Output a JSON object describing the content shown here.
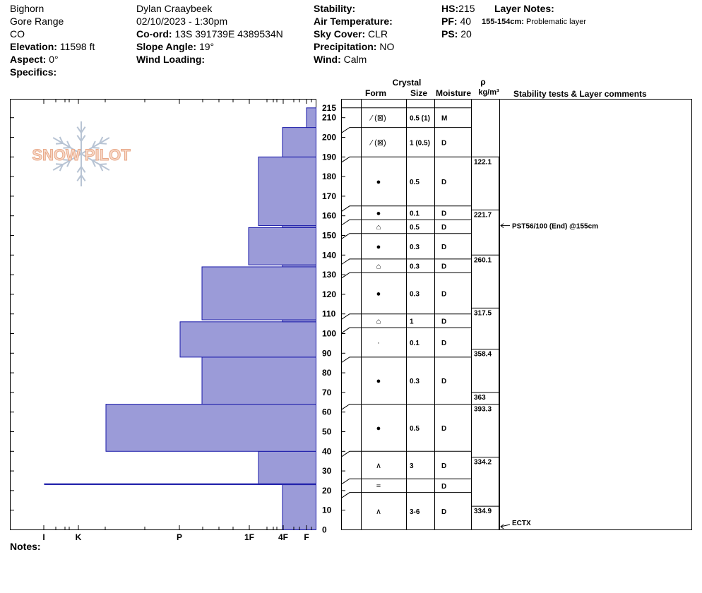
{
  "header": {
    "location": "Bighorn",
    "range": "Gore Range",
    "state": "CO",
    "elevation_label": "Elevation:",
    "elevation": "11598 ft",
    "aspect_label": "Aspect:",
    "aspect": "0°",
    "specifics_label": "Specifics:",
    "observer": "Dylan Craaybeek",
    "datetime": "02/10/2023 - 1:30pm",
    "coord_label": "Co-ord:",
    "coord": "13S 391739E 4389534N",
    "slope_label": "Slope Angle:",
    "slope": "19°",
    "wind_loading_label": "Wind Loading:",
    "stability_label": "Stability:",
    "air_temp_label": "Air Temperature:",
    "sky_label": "Sky Cover:",
    "sky": "CLR",
    "precip_label": "Precipitation:",
    "precip": "NO",
    "wind_label": "Wind:",
    "wind": "Calm",
    "hs_label": "HS:",
    "hs": "215",
    "pf_label": "PF:",
    "pf": "40",
    "ps_label": "PS:",
    "ps": "20",
    "layer_notes_label": "Layer Notes:",
    "layer_note_range": "155-154cm:",
    "layer_note_text": "Problematic layer",
    "notes_label": "Notes:"
  },
  "logo": {
    "text": "SNOW PILOT"
  },
  "chart_data": {
    "type": "snow_profile",
    "y_unit": "cm",
    "ylim": [
      0,
      220
    ],
    "y_ticks": [
      0,
      10,
      20,
      30,
      40,
      50,
      60,
      70,
      80,
      90,
      100,
      110,
      120,
      130,
      140,
      150,
      160,
      170,
      180,
      190,
      200,
      210,
      215
    ],
    "hardness_scale": [
      "I",
      "K",
      "P",
      "1F",
      "4F",
      "F"
    ],
    "hardness_profile": [
      {
        "from": 0,
        "to": 23,
        "hardness": "4F"
      },
      {
        "from": 23,
        "to": 23.5,
        "hardness": "I"
      },
      {
        "from": 23.5,
        "to": 40,
        "hardness": "1F+"
      },
      {
        "from": 40,
        "to": 64,
        "hardness": "K+"
      },
      {
        "from": 64,
        "to": 88,
        "hardness": "P+"
      },
      {
        "from": 88,
        "to": 106,
        "hardness": "P"
      },
      {
        "from": 106,
        "to": 107,
        "hardness": "4F"
      },
      {
        "from": 107,
        "to": 134,
        "hardness": "P+"
      },
      {
        "from": 134,
        "to": 135,
        "hardness": "4F"
      },
      {
        "from": 135,
        "to": 154,
        "hardness": "1F"
      },
      {
        "from": 154,
        "to": 155,
        "hardness": "4F"
      },
      {
        "from": 155,
        "to": 190,
        "hardness": "1F+"
      },
      {
        "from": 190,
        "to": 205,
        "hardness": "4F"
      },
      {
        "from": 205,
        "to": 215,
        "hardness": "F"
      }
    ],
    "columns": {
      "crystal": "Crystal",
      "form": "Form",
      "size": "Size",
      "moisture": "Moisture",
      "rho": "ρ",
      "rho_unit": "kg/m³",
      "tests": "Stability tests & Layer comments"
    },
    "layers": [
      {
        "top": 215,
        "bottom": 205,
        "form": "⁄ (⊠)",
        "size": "0.5 (1)",
        "moisture": "M"
      },
      {
        "top": 205,
        "bottom": 190,
        "form": "⁄ (⊠)",
        "size": "1 (0.5)",
        "moisture": "D"
      },
      {
        "top": 190,
        "bottom": 165,
        "form": "●",
        "size": "0.5",
        "moisture": "D"
      },
      {
        "top": 165,
        "bottom": 158,
        "form": "●",
        "size": "0.1",
        "moisture": "D"
      },
      {
        "top": 158,
        "bottom": 151,
        "form": "⌂",
        "size": "0.5",
        "moisture": "D"
      },
      {
        "top": 151,
        "bottom": 138,
        "form": "●",
        "size": "0.3",
        "moisture": "D"
      },
      {
        "top": 138,
        "bottom": 131,
        "form": "⌂",
        "size": "0.3",
        "moisture": "D"
      },
      {
        "top": 131,
        "bottom": 110,
        "form": "●",
        "size": "0.3",
        "moisture": "D"
      },
      {
        "top": 110,
        "bottom": 103,
        "form": "⌂",
        "size": "1",
        "moisture": "D"
      },
      {
        "top": 103,
        "bottom": 88,
        "form": "·",
        "size": "0.1",
        "moisture": "D"
      },
      {
        "top": 88,
        "bottom": 64,
        "form": "●",
        "size": "0.3",
        "moisture": "D"
      },
      {
        "top": 64,
        "bottom": 40,
        "form": "●",
        "size": "0.5",
        "moisture": "D"
      },
      {
        "top": 40,
        "bottom": 26,
        "form": "∧",
        "size": "3",
        "moisture": "D"
      },
      {
        "top": 26,
        "bottom": 19,
        "form": "=",
        "size": "",
        "moisture": "D"
      },
      {
        "top": 19,
        "bottom": 0,
        "form": "∧",
        "size": "3-6",
        "moisture": "D"
      }
    ],
    "density": [
      {
        "top": 190,
        "bottom": 163,
        "value": "122.1"
      },
      {
        "top": 163,
        "bottom": 140,
        "value": "221.7"
      },
      {
        "top": 140,
        "bottom": 113,
        "value": "260.1"
      },
      {
        "top": 113,
        "bottom": 92,
        "value": "317.5"
      },
      {
        "top": 92,
        "bottom": 70,
        "value": "358.4"
      },
      {
        "top": 70,
        "bottom": 64,
        "value": "363"
      },
      {
        "top": 64,
        "bottom": 37,
        "value": "393.3"
      },
      {
        "top": 37,
        "bottom": 12,
        "value": "334.2"
      },
      {
        "top": 12,
        "bottom": 0,
        "value": "334.9"
      }
    ],
    "tests": [
      {
        "depth": 155,
        "text": "PST56/100 (End) @155cm"
      },
      {
        "depth": 0,
        "text": "ECTX"
      }
    ]
  },
  "colors": {
    "fill": "#9b9bd8",
    "stroke": "#1a1aa8",
    "grid": "#000000",
    "logo": "#f2c8b0"
  }
}
